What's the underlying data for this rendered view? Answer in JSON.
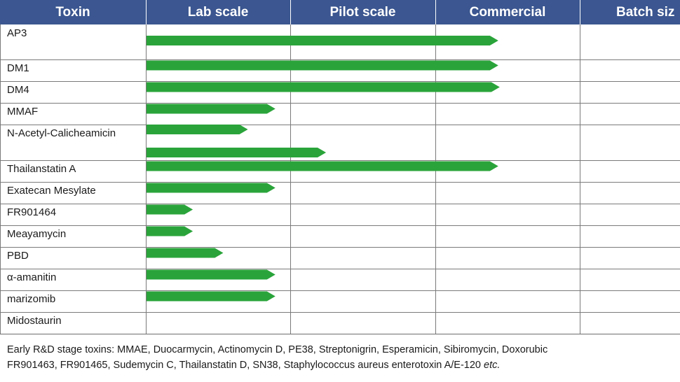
{
  "chart_data": {
    "type": "bar",
    "columns": [
      "Toxin",
      "Lab scale",
      "Pilot scale",
      "Commercial",
      "Batch siz"
    ],
    "rows": [
      {
        "label": "AP3",
        "bars": [
          2.43
        ]
      },
      {
        "label": "DM1",
        "bars": [
          2.43
        ]
      },
      {
        "label": "DM4",
        "bars": [
          2.44
        ]
      },
      {
        "label": "MMAF",
        "bars": [
          0.89
        ]
      },
      {
        "label": "N-Acetyl-Calicheamicin",
        "bars": [
          0.7,
          1.24
        ]
      },
      {
        "label": "Thailanstatin A",
        "bars": [
          2.43
        ]
      },
      {
        "label": "Exatecan Mesylate",
        "bars": [
          0.89
        ]
      },
      {
        "label": "FR901464",
        "bars": [
          0.32
        ]
      },
      {
        "label": "Meayamycin",
        "bars": [
          0.32
        ]
      },
      {
        "label": "PBD",
        "bars": [
          0.53
        ]
      },
      {
        "label": "α-amanitin",
        "bars": [
          0.89
        ]
      },
      {
        "label": "marizomib",
        "bars": [
          0.89
        ]
      },
      {
        "label": "Midostaurin",
        "bars": []
      }
    ],
    "bar_color": "#2aa43a",
    "header_color": "#3b5690"
  },
  "footer": {
    "line1": "Early R&D stage toxins: MMAE, Duocarmycin, Actinomycin D, PE38, Streptonigrin, Esperamicin, Sibiromycin, Doxorubic",
    "line2_main": "FR901463, FR901465, Sudemycin C, Thailanstatin D, SN38, Staphylococcus aureus enterotoxin A/E-120 ",
    "line2_etc": "etc."
  }
}
